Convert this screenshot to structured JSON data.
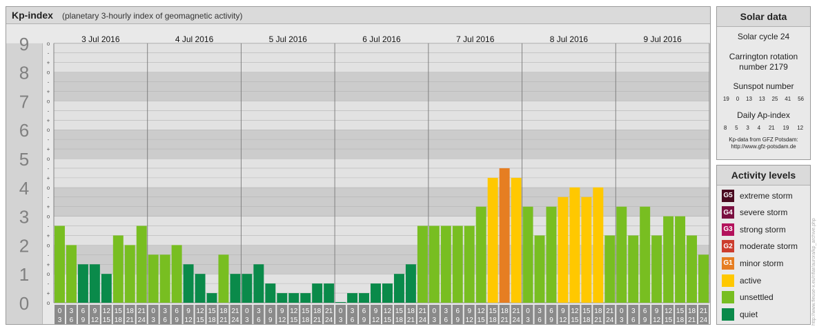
{
  "chart_data": {
    "type": "bar",
    "title": "Kp-index",
    "subtitle": "(planetary 3-hourly index of geomagnetic activity)",
    "ylim": [
      0,
      9
    ],
    "y_ticks": [
      "0",
      "1",
      "2",
      "3",
      "4",
      "5",
      "6",
      "7",
      "8",
      "9"
    ],
    "minor_ticks": [
      "o",
      "+",
      "-"
    ],
    "days": [
      "3 Jul 2016",
      "4 Jul 2016",
      "5 Jul 2016",
      "6 Jul 2016",
      "7 Jul 2016",
      "8 Jul 2016",
      "9 Jul 2016"
    ],
    "slot_start_labels": [
      "0",
      "3",
      "6",
      "9",
      "12",
      "15",
      "18",
      "21"
    ],
    "slot_end_labels": [
      "3",
      "6",
      "9",
      "12",
      "15",
      "18",
      "21",
      "24"
    ],
    "values": [
      2.667,
      2.0,
      1.333,
      1.333,
      1.0,
      2.333,
      2.0,
      2.667,
      1.667,
      1.667,
      2.0,
      1.333,
      1.0,
      0.333,
      1.667,
      1.0,
      1.0,
      1.333,
      0.667,
      0.333,
      0.333,
      0.333,
      0.667,
      0.667,
      0.0,
      0.333,
      0.333,
      0.667,
      0.667,
      1.0,
      1.333,
      2.667,
      2.667,
      2.667,
      2.667,
      2.667,
      3.333,
      4.333,
      4.667,
      4.333,
      3.333,
      2.333,
      3.333,
      3.667,
      4.0,
      3.667,
      4.0,
      2.333,
      3.333,
      2.333,
      3.333,
      2.333,
      3.0,
      3.0,
      2.333,
      1.667
    ],
    "levels": [
      "unsettled",
      "unsettled",
      "quiet",
      "quiet",
      "quiet",
      "unsettled",
      "unsettled",
      "unsettled",
      "unsettled",
      "unsettled",
      "unsettled",
      "quiet",
      "quiet",
      "quiet",
      "unsettled",
      "quiet",
      "quiet",
      "quiet",
      "quiet",
      "quiet",
      "quiet",
      "quiet",
      "quiet",
      "quiet",
      "quiet",
      "quiet",
      "quiet",
      "quiet",
      "quiet",
      "quiet",
      "quiet",
      "unsettled",
      "unsettled",
      "unsettled",
      "unsettled",
      "unsettled",
      "unsettled",
      "active",
      "minor storm",
      "active",
      "unsettled",
      "unsettled",
      "unsettled",
      "active",
      "active",
      "active",
      "active",
      "unsettled",
      "unsettled",
      "unsettled",
      "unsettled",
      "unsettled",
      "unsettled",
      "unsettled",
      "unsettled",
      "unsettled"
    ],
    "level_colors": {
      "quiet": "#0a8a4a",
      "unsettled": "#78be21",
      "active": "#ffc800",
      "minor storm": "#e67e22",
      "moderate storm": "#cc3d2e",
      "strong storm": "#b3125c",
      "severe storm": "#7a1040",
      "extreme storm": "#4a0a20"
    }
  },
  "solar": {
    "title": "Solar data",
    "cycle": "Solar cycle 24",
    "carrington_line1": "Carrington rotation",
    "carrington_line2": "number 2179",
    "sunspot_title": "Sunspot number",
    "sunspot_values": [
      "19",
      "0",
      "13",
      "13",
      "25",
      "41",
      "56"
    ],
    "ap_title": "Daily Ap-index",
    "ap_values": [
      "8",
      "5",
      "3",
      "4",
      "21",
      "19",
      "12"
    ],
    "credit_line1": "Kp-data from GFZ Potsdam:",
    "credit_line2": "http://www.gfz-potsdam.de"
  },
  "activity": {
    "title": "Activity levels",
    "items": [
      {
        "code": "G5",
        "label": "extreme storm",
        "color": "#4a0a20"
      },
      {
        "code": "G4",
        "label": "severe storm",
        "color": "#7a1040"
      },
      {
        "code": "G3",
        "label": "strong storm",
        "color": "#b3125c"
      },
      {
        "code": "G2",
        "label": "moderate storm",
        "color": "#cc3d2e"
      },
      {
        "code": "G1",
        "label": "minor storm",
        "color": "#e67e22"
      },
      {
        "code": "",
        "label": "active",
        "color": "#ffc800"
      },
      {
        "code": "",
        "label": "unsettled",
        "color": "#78be21"
      },
      {
        "code": "",
        "label": "quiet",
        "color": "#0a8a4a"
      }
    ]
  },
  "side_credit": "http://www.fleuse-x.eu/nflar/aurora/kp_archive.php"
}
